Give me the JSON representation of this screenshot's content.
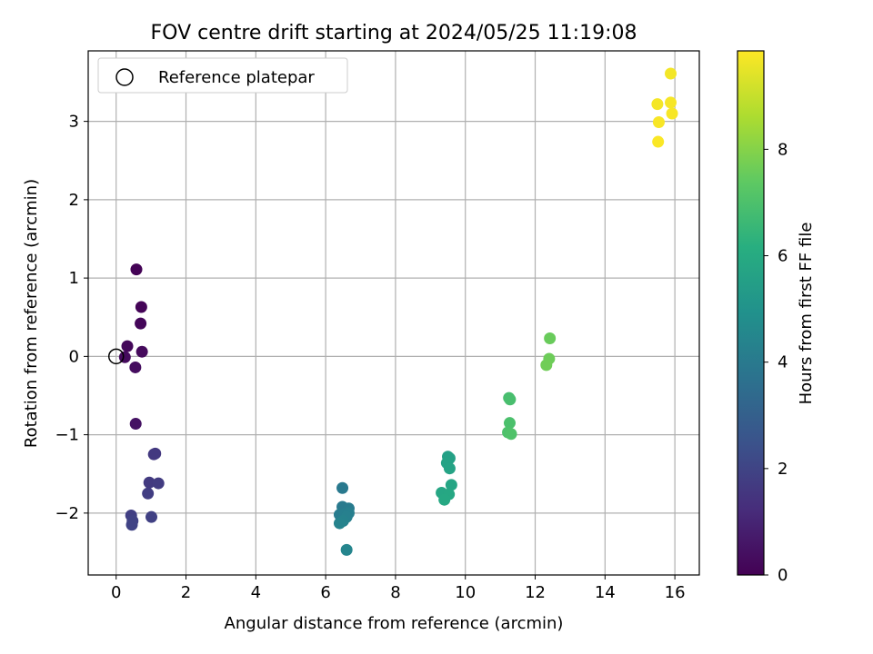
{
  "chart_data": {
    "type": "scatter",
    "title": "FOV centre drift starting at 2024/05/25 11:19:08",
    "xlabel": "Angular distance from reference (arcmin)",
    "ylabel": "Rotation from reference (arcmin)",
    "xlim": [
      -0.8,
      16.7
    ],
    "ylim": [
      -2.79,
      3.9
    ],
    "xticks": [
      0,
      2,
      4,
      6,
      8,
      10,
      12,
      14,
      16
    ],
    "yticks": [
      -2,
      -1,
      0,
      1,
      2,
      3
    ],
    "grid": true,
    "legend": {
      "position": "top-left",
      "entries": [
        "Reference platepar"
      ]
    },
    "reference_point": {
      "label": "Reference platepar",
      "x": 0,
      "y": 0
    },
    "colorbar": {
      "label": "Hours from first FF file",
      "min": 0,
      "max": 9.85,
      "ticks": [
        0,
        2,
        4,
        6,
        8
      ],
      "colormap": "viridis"
    },
    "points": [
      {
        "x": 0.58,
        "y": 1.11,
        "c": 0.05
      },
      {
        "x": 0.72,
        "y": 0.63,
        "c": 0.1
      },
      {
        "x": 0.7,
        "y": 0.42,
        "c": 0.15
      },
      {
        "x": 0.32,
        "y": 0.13,
        "c": 0.2
      },
      {
        "x": 0.74,
        "y": 0.06,
        "c": 0.25
      },
      {
        "x": 0.25,
        "y": -0.01,
        "c": 0.3
      },
      {
        "x": 0.55,
        "y": -0.14,
        "c": 0.35
      },
      {
        "x": 0.56,
        "y": -0.86,
        "c": 0.5
      },
      {
        "x": 1.12,
        "y": -1.24,
        "c": 1.6
      },
      {
        "x": 1.08,
        "y": -1.25,
        "c": 1.65
      },
      {
        "x": 0.95,
        "y": -1.61,
        "c": 1.7
      },
      {
        "x": 1.21,
        "y": -1.62,
        "c": 1.75
      },
      {
        "x": 0.91,
        "y": -1.75,
        "c": 1.8
      },
      {
        "x": 0.43,
        "y": -2.03,
        "c": 1.85
      },
      {
        "x": 1.01,
        "y": -2.05,
        "c": 1.9
      },
      {
        "x": 0.47,
        "y": -2.1,
        "c": 1.95
      },
      {
        "x": 0.45,
        "y": -2.15,
        "c": 2.0
      },
      {
        "x": 6.48,
        "y": -1.68,
        "c": 4.0
      },
      {
        "x": 6.48,
        "y": -1.92,
        "c": 4.05
      },
      {
        "x": 6.66,
        "y": -1.94,
        "c": 4.1
      },
      {
        "x": 6.4,
        "y": -2.02,
        "c": 4.15
      },
      {
        "x": 6.55,
        "y": -2.01,
        "c": 4.2
      },
      {
        "x": 6.66,
        "y": -2.0,
        "c": 4.25
      },
      {
        "x": 6.6,
        "y": -2.05,
        "c": 4.3
      },
      {
        "x": 6.5,
        "y": -2.1,
        "c": 4.35
      },
      {
        "x": 6.4,
        "y": -2.13,
        "c": 4.4
      },
      {
        "x": 6.6,
        "y": -2.47,
        "c": 4.5
      },
      {
        "x": 9.5,
        "y": -1.28,
        "c": 5.6
      },
      {
        "x": 9.55,
        "y": -1.3,
        "c": 5.65
      },
      {
        "x": 9.47,
        "y": -1.36,
        "c": 5.7
      },
      {
        "x": 9.55,
        "y": -1.43,
        "c": 5.75
      },
      {
        "x": 9.6,
        "y": -1.64,
        "c": 5.8
      },
      {
        "x": 9.32,
        "y": -1.74,
        "c": 5.85
      },
      {
        "x": 9.53,
        "y": -1.76,
        "c": 5.9
      },
      {
        "x": 9.4,
        "y": -1.83,
        "c": 5.95
      },
      {
        "x": 11.25,
        "y": -0.53,
        "c": 6.9
      },
      {
        "x": 11.28,
        "y": -0.55,
        "c": 6.95
      },
      {
        "x": 11.27,
        "y": -0.85,
        "c": 7.0
      },
      {
        "x": 11.22,
        "y": -0.97,
        "c": 7.05
      },
      {
        "x": 11.31,
        "y": -0.99,
        "c": 7.1
      },
      {
        "x": 12.42,
        "y": 0.23,
        "c": 7.6
      },
      {
        "x": 12.4,
        "y": -0.03,
        "c": 7.65
      },
      {
        "x": 12.32,
        "y": -0.11,
        "c": 7.7
      },
      {
        "x": 15.88,
        "y": 3.61,
        "c": 9.7
      },
      {
        "x": 15.5,
        "y": 3.22,
        "c": 9.72
      },
      {
        "x": 15.88,
        "y": 3.24,
        "c": 9.74
      },
      {
        "x": 15.92,
        "y": 3.1,
        "c": 9.76
      },
      {
        "x": 15.54,
        "y": 2.99,
        "c": 9.78
      },
      {
        "x": 15.52,
        "y": 2.74,
        "c": 9.8
      }
    ]
  }
}
